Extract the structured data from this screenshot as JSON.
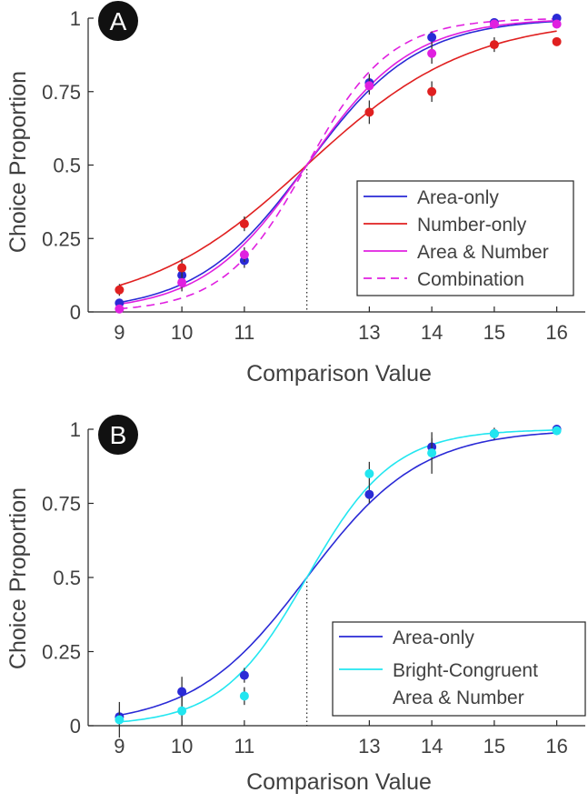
{
  "chart_data": [
    {
      "type": "line",
      "panel_label": "A",
      "title": "",
      "xlabel": "Comparison Value",
      "ylabel": "Choice Proportion",
      "xlim": [
        8.5,
        16.5
      ],
      "ylim": [
        0,
        1
      ],
      "xticks": [
        9,
        10,
        11,
        13,
        14,
        15,
        16
      ],
      "yticks": [
        0,
        0.25,
        0.5,
        0.75,
        1
      ],
      "ytick_labels": [
        "0",
        "0.25",
        "0.5",
        "0.75",
        "1"
      ],
      "reference_line_x": 12,
      "legend_position": "lower-right",
      "series": [
        {
          "name": "Area-only",
          "color": "#2a2ad6",
          "line_style": "solid",
          "fit_slope": 1.13,
          "points": [
            {
              "x": 9,
              "y": 0.03,
              "err": 0.01
            },
            {
              "x": 10,
              "y": 0.125,
              "err": 0.03
            },
            {
              "x": 11,
              "y": 0.175,
              "err": 0.025
            },
            {
              "x": 13,
              "y": 0.78,
              "err": 0.03
            },
            {
              "x": 14,
              "y": 0.935,
              "err": 0.02
            },
            {
              "x": 15,
              "y": 0.985,
              "err": 0.01
            },
            {
              "x": 16,
              "y": 1.0,
              "err": 0.005
            }
          ]
        },
        {
          "name": "Number-only",
          "color": "#e02020",
          "line_style": "solid",
          "fit_slope": 0.77,
          "points": [
            {
              "x": 9,
              "y": 0.075,
              "err": 0.02
            },
            {
              "x": 10,
              "y": 0.15,
              "err": 0.03
            },
            {
              "x": 11,
              "y": 0.3,
              "err": 0.025
            },
            {
              "x": 13,
              "y": 0.68,
              "err": 0.04
            },
            {
              "x": 14,
              "y": 0.75,
              "err": 0.035
            },
            {
              "x": 15,
              "y": 0.91,
              "err": 0.025
            },
            {
              "x": 16,
              "y": 0.92,
              "err": 0.005
            }
          ]
        },
        {
          "name": "Area & Number",
          "color": "#e020e0",
          "line_style": "solid",
          "fit_slope": 1.2,
          "points": [
            {
              "x": 9,
              "y": 0.01,
              "err": 0.01
            },
            {
              "x": 10,
              "y": 0.1,
              "err": 0.03
            },
            {
              "x": 11,
              "y": 0.195,
              "err": 0.025
            },
            {
              "x": 13,
              "y": 0.77,
              "err": 0.03
            },
            {
              "x": 14,
              "y": 0.88,
              "err": 0.035
            },
            {
              "x": 15,
              "y": 0.98,
              "err": 0.015
            },
            {
              "x": 16,
              "y": 0.98,
              "err": 0.005
            }
          ]
        },
        {
          "name": "Combination",
          "color": "#e020e0",
          "line_style": "dashed",
          "fit_slope": 1.5,
          "points": []
        }
      ]
    },
    {
      "type": "line",
      "panel_label": "B",
      "title": "",
      "xlabel": "Comparison Value",
      "ylabel": "Choice Proportion",
      "xlim": [
        8.5,
        16.5
      ],
      "ylim": [
        0,
        1
      ],
      "xticks": [
        9,
        10,
        11,
        13,
        14,
        15,
        16
      ],
      "yticks": [
        0,
        0.25,
        0.5,
        0.75,
        1
      ],
      "ytick_labels": [
        "0",
        "0.25",
        "0.5",
        "0.75",
        "1"
      ],
      "reference_line_x": 12,
      "legend_position": "lower-right",
      "series": [
        {
          "name": "Area-only",
          "color": "#2a2ad6",
          "line_style": "solid",
          "fit_slope": 1.1,
          "points": [
            {
              "x": 9,
              "y": 0.03,
              "err": 0.02
            },
            {
              "x": 10,
              "y": 0.115,
              "err": 0.05
            },
            {
              "x": 11,
              "y": 0.17,
              "err": 0.025
            },
            {
              "x": 13,
              "y": 0.78,
              "err": 0.03
            },
            {
              "x": 14,
              "y": 0.94,
              "err": 0.03
            },
            {
              "x": 15,
              "y": 0.985,
              "err": 0.02
            },
            {
              "x": 16,
              "y": 1.0,
              "err": 0.005
            }
          ]
        },
        {
          "name": "Bright-Congruent Area & Number",
          "legend_lines": [
            "Bright-Congruent",
            "Area & Number"
          ],
          "color": "#22e6f0",
          "line_style": "solid",
          "fit_slope": 1.45,
          "points": [
            {
              "x": 9,
              "y": 0.02,
              "err": 0.06
            },
            {
              "x": 10,
              "y": 0.05,
              "err": 0.05
            },
            {
              "x": 11,
              "y": 0.1,
              "err": 0.03
            },
            {
              "x": 13,
              "y": 0.85,
              "err": 0.04
            },
            {
              "x": 14,
              "y": 0.92,
              "err": 0.07
            },
            {
              "x": 15,
              "y": 0.985,
              "err": 0.015
            },
            {
              "x": 16,
              "y": 0.995,
              "err": 0.005
            }
          ]
        }
      ]
    }
  ]
}
